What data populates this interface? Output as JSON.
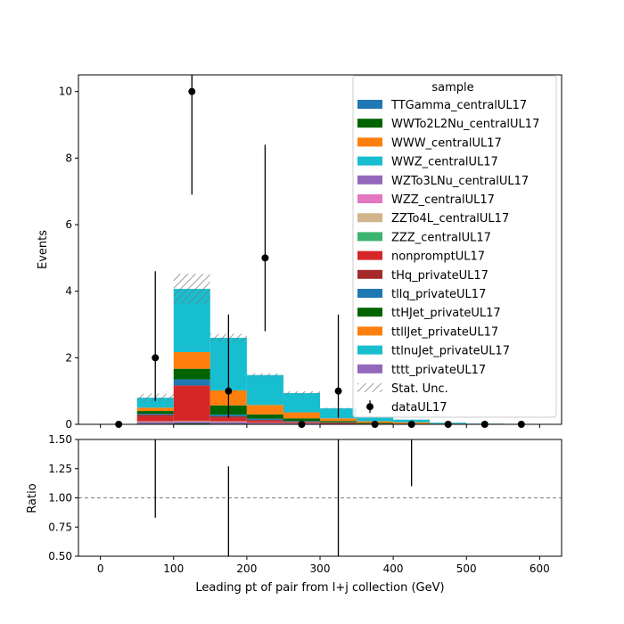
{
  "chart_data": [
    {
      "type": "bar",
      "stacked": true,
      "xlabel": "",
      "ylabel": "Events",
      "xlim": [
        -30,
        630
      ],
      "ylim": [
        0,
        10.5
      ],
      "bin_edges": [
        0,
        50,
        100,
        150,
        200,
        250,
        300,
        350,
        400,
        450,
        500,
        550,
        600
      ],
      "x_ticks": [
        0,
        100,
        200,
        300,
        400,
        500,
        600
      ],
      "y_ticks": [
        0,
        2,
        4,
        6,
        8,
        10
      ],
      "legend": {
        "title": "sample",
        "placement": "top-right"
      },
      "series": [
        {
          "name": "TTGamma_centralUL17",
          "color": "#1f77b4",
          "values": [
            0,
            0,
            0,
            0,
            0,
            0,
            0,
            0,
            0,
            0,
            0,
            0
          ]
        },
        {
          "name": "WWTo2L2Nu_centralUL17",
          "color": "#006400",
          "values": [
            0,
            0.02,
            0.03,
            0.02,
            0.01,
            0.01,
            0,
            0,
            0,
            0,
            0,
            0
          ]
        },
        {
          "name": "WWW_centralUL17",
          "color": "#ff7f0e",
          "values": [
            0,
            0,
            0,
            0,
            0,
            0,
            0,
            0,
            0,
            0,
            0,
            0
          ]
        },
        {
          "name": "WWZ_centralUL17",
          "color": "#17becf",
          "values": [
            0,
            0,
            0,
            0,
            0,
            0,
            0,
            0,
            0,
            0,
            0,
            0
          ]
        },
        {
          "name": "WZTo3LNu_centralUL17",
          "color": "#9467bd",
          "values": [
            0,
            0.05,
            0.05,
            0.05,
            0.03,
            0.02,
            0.01,
            0,
            0,
            0,
            0,
            0
          ]
        },
        {
          "name": "WZZ_centralUL17",
          "color": "#e377c2",
          "values": [
            0,
            0,
            0,
            0,
            0,
            0,
            0,
            0,
            0,
            0,
            0,
            0
          ]
        },
        {
          "name": "ZZTo4L_centralUL17",
          "color": "#d2b48c",
          "values": [
            0,
            0.02,
            0.02,
            0.02,
            0.01,
            0.01,
            0,
            0,
            0,
            0,
            0,
            0
          ]
        },
        {
          "name": "ZZZ_centralUL17",
          "color": "#3cb371",
          "values": [
            0,
            0,
            0,
            0,
            0,
            0,
            0,
            0,
            0,
            0,
            0,
            0
          ]
        },
        {
          "name": "nonpromptUL17",
          "color": "#d62728",
          "values": [
            0,
            0.15,
            1.05,
            0.1,
            0.05,
            0.02,
            0.02,
            0,
            0,
            0,
            0,
            0
          ]
        },
        {
          "name": "tHq_privateUL17",
          "color": "#a52a2a",
          "values": [
            0,
            0.05,
            0.02,
            0.05,
            0.03,
            0.02,
            0.02,
            0.01,
            0.01,
            0,
            0,
            0
          ]
        },
        {
          "name": "tllq_privateUL17",
          "color": "#1f77b4",
          "values": [
            0,
            0.03,
            0.18,
            0.05,
            0.04,
            0.02,
            0.01,
            0.01,
            0,
            0,
            0,
            0
          ]
        },
        {
          "name": "ttHJet_privateUL17",
          "color": "#006400",
          "values": [
            0,
            0.08,
            0.32,
            0.28,
            0.13,
            0.08,
            0.04,
            0.02,
            0.01,
            0,
            0,
            0
          ]
        },
        {
          "name": "ttllJet_privateUL17",
          "color": "#ff7f0e",
          "values": [
            0,
            0.1,
            0.5,
            0.45,
            0.28,
            0.18,
            0.08,
            0.05,
            0.04,
            0.02,
            0.01,
            0.01
          ]
        },
        {
          "name": "ttlnuJet_privateUL17",
          "color": "#17becf",
          "values": [
            0,
            0.3,
            1.9,
            1.58,
            0.9,
            0.58,
            0.3,
            0.15,
            0.08,
            0.03,
            0.01,
            0
          ]
        },
        {
          "name": "tttt_privateUL17",
          "color": "#9467bd",
          "values": [
            0,
            0,
            0,
            0,
            0,
            0,
            0,
            0,
            0,
            0,
            0,
            0
          ]
        }
      ],
      "stat_unc": {
        "name": "Stat. Unc.",
        "values": [
          0,
          0.12,
          0.45,
          0.12,
          0.05,
          0.05,
          0.02,
          0.01,
          0.01,
          0,
          0,
          0
        ]
      },
      "data": {
        "name": "dataUL17",
        "x": [
          25,
          75,
          125,
          175,
          225,
          275,
          325,
          375,
          425,
          475,
          525,
          575
        ],
        "y": [
          0,
          2,
          10,
          1,
          5,
          0,
          1,
          0,
          0,
          0,
          0,
          0
        ],
        "err_low": [
          0,
          1.3,
          3.1,
          0.8,
          2.2,
          0,
          0.8,
          0,
          0,
          0,
          0,
          0
        ],
        "err_high": [
          0,
          2.6,
          4.3,
          2.3,
          3.4,
          0,
          2.3,
          0,
          0,
          0,
          0,
          0
        ]
      }
    },
    {
      "type": "scatter",
      "xlabel": "Leading pt of pair from l+j collection (GeV)",
      "ylabel": "Ratio",
      "xlim": [
        -30,
        630
      ],
      "ylim": [
        0.5,
        1.5
      ],
      "x_ticks": [
        0,
        100,
        200,
        300,
        400,
        500,
        600
      ],
      "x_tick_labels": [
        "0",
        "100",
        "200",
        "300",
        "400",
        "500",
        "600"
      ],
      "y_ticks": [
        0.5,
        0.75,
        1.0,
        1.25,
        1.5
      ],
      "y_tick_labels": [
        "0.50",
        "0.75",
        "1.00",
        "1.25",
        "1.50"
      ],
      "reference_line": 1.0,
      "error_bars": [
        {
          "x": 75,
          "low": 0.83,
          "high": 1.5
        },
        {
          "x": 175,
          "low": 0.5,
          "high": 1.27
        },
        {
          "x": 325,
          "low": 0.5,
          "high": 1.5
        },
        {
          "x": 425,
          "low": 1.1,
          "high": 1.5
        }
      ]
    }
  ]
}
